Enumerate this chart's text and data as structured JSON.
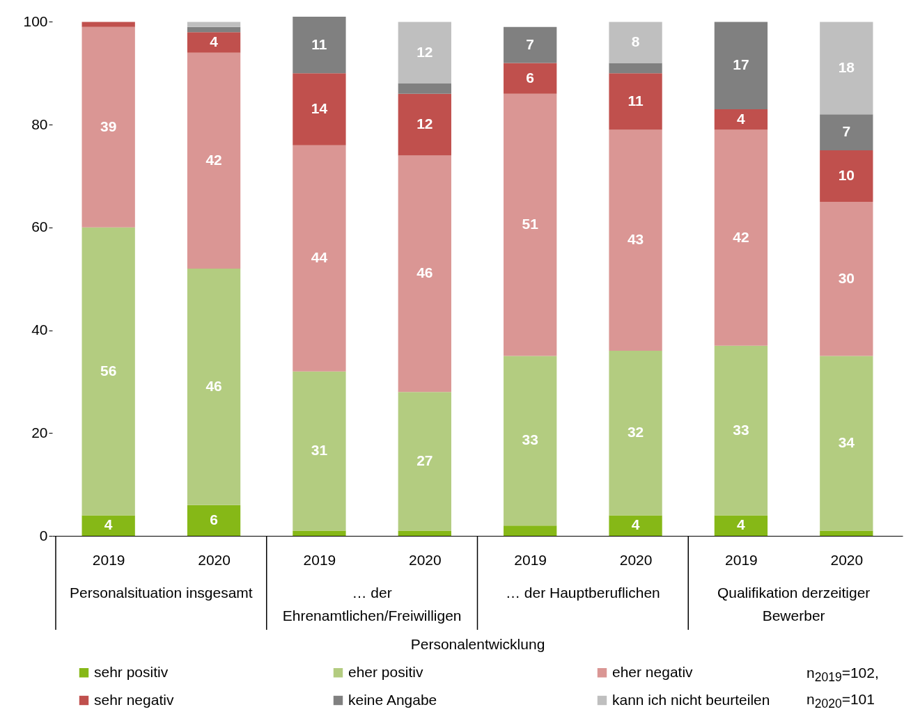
{
  "chart_data": {
    "type": "bar",
    "stacked": true,
    "xlabel": "Personalentwicklung",
    "categories": [
      "2019",
      "2020",
      "2019",
      "2020",
      "2019",
      "2020",
      "2019",
      "2020"
    ],
    "ylim": [
      0,
      101
    ],
    "yticks": [
      0,
      20,
      40,
      60,
      80,
      100
    ],
    "grid": false,
    "legend": "bottom",
    "series": [
      {
        "name": "sehr positiv",
        "color": "#86b817",
        "values": [
          4,
          6,
          1,
          1,
          2,
          4,
          4,
          1
        ],
        "value_labels": [
          "4",
          "6",
          null,
          null,
          null,
          "4",
          "4",
          null
        ]
      },
      {
        "name": "eher positiv",
        "color": "#b3cc80",
        "values": [
          56,
          46,
          31,
          27,
          33,
          32,
          33,
          34
        ],
        "value_labels": [
          "56",
          "46",
          "31",
          "27",
          "33",
          "32",
          "33",
          "34"
        ]
      },
      {
        "name": "eher negativ",
        "color": "#da9694",
        "values": [
          39,
          42,
          44,
          46,
          51,
          43,
          42,
          30
        ],
        "value_labels": [
          "39",
          "42",
          "44",
          "46",
          "51",
          "43",
          "42",
          "30"
        ]
      },
      {
        "name": "sehr negativ",
        "color": "#c0504d",
        "values": [
          1,
          4,
          14,
          12,
          6,
          11,
          4,
          10
        ],
        "value_labels": [
          null,
          "4",
          "14",
          "12",
          "6",
          "11",
          "4",
          "10"
        ]
      },
      {
        "name": "keine Angabe",
        "color": "#808080",
        "values": [
          0,
          1,
          11,
          2,
          7,
          2,
          17,
          7
        ],
        "value_labels": [
          null,
          null,
          "11",
          null,
          "7",
          null,
          "17",
          "7"
        ]
      },
      {
        "name": "kann ich nicht beurteilen",
        "color": "#bfbfbf",
        "values": [
          0,
          1,
          0,
          12,
          0,
          8,
          0,
          18
        ],
        "value_labels": [
          null,
          null,
          null,
          "12",
          null,
          "8",
          null,
          "18"
        ]
      }
    ],
    "annotations": [
      "Personalsituation insgesamt",
      "… der Ehrenamtlichen/Freiwilligen",
      "… der Hauptberuflichen",
      "Qualifikation derzeitiger Bewerber",
      "n$_{2019}$=102,",
      "n$_{2020}$=101"
    ]
  }
}
